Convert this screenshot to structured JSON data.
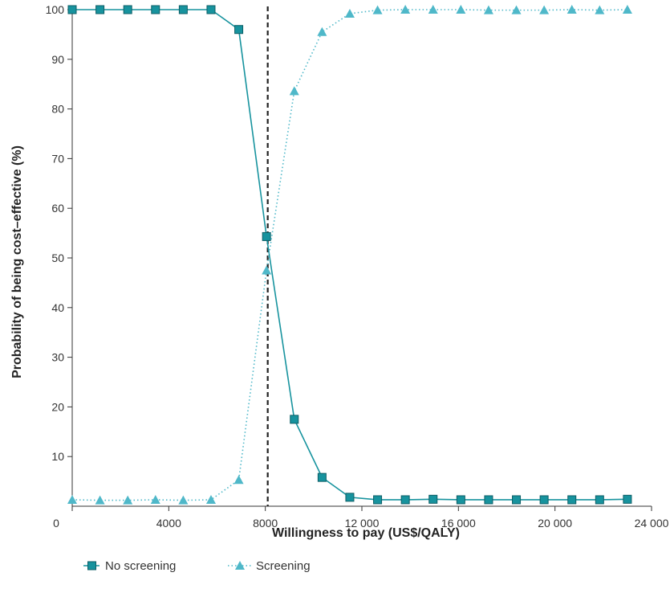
{
  "chart_data": {
    "type": "line",
    "title": "",
    "xlabel": "Willingness to pay (US$/QALY)",
    "ylabel": "Probability of being cost–effective (%)",
    "xlim": [
      0,
      24000
    ],
    "ylim": [
      0,
      100
    ],
    "x_ticks": [
      0,
      4000,
      8000,
      12000,
      16000,
      20000,
      24000
    ],
    "x_tick_labels": [
      "0",
      "4000",
      "8000",
      "12 000",
      "16 000",
      "20 000",
      "24 000"
    ],
    "y_ticks": [
      10,
      20,
      30,
      40,
      50,
      60,
      70,
      80,
      90,
      100
    ],
    "y_tick_labels": [
      "10",
      "20",
      "30",
      "40",
      "50",
      "60",
      "70",
      "80",
      "90",
      "100"
    ],
    "grid": false,
    "legend_position": "bottom-left",
    "threshold_line": {
      "x": 8100,
      "style": "dashed",
      "color": "#222222"
    },
    "x": [
      0,
      1150,
      2300,
      3450,
      4600,
      5750,
      6900,
      8050,
      9200,
      10350,
      11500,
      12650,
      13800,
      14950,
      16100,
      17250,
      18400,
      19550,
      20700,
      21850,
      23000
    ],
    "series": [
      {
        "name": "No screening",
        "marker": "square",
        "line_style": "solid",
        "color": "#17939e",
        "values": [
          100,
          100,
          100,
          100,
          100,
          100,
          96,
          54.3,
          17.5,
          5.8,
          1.8,
          1.3,
          1.3,
          1.4,
          1.3,
          1.3,
          1.3,
          1.3,
          1.3,
          1.3,
          1.4
        ]
      },
      {
        "name": "Screening",
        "marker": "triangle",
        "line_style": "dotted",
        "color": "#4fb8c9",
        "values": [
          1.3,
          1.2,
          1.2,
          1.3,
          1.2,
          1.3,
          5.3,
          47.5,
          83.6,
          95.5,
          99.2,
          99.9,
          100,
          100,
          100,
          99.9,
          99.9,
          99.9,
          100,
          99.9,
          100
        ]
      }
    ]
  }
}
